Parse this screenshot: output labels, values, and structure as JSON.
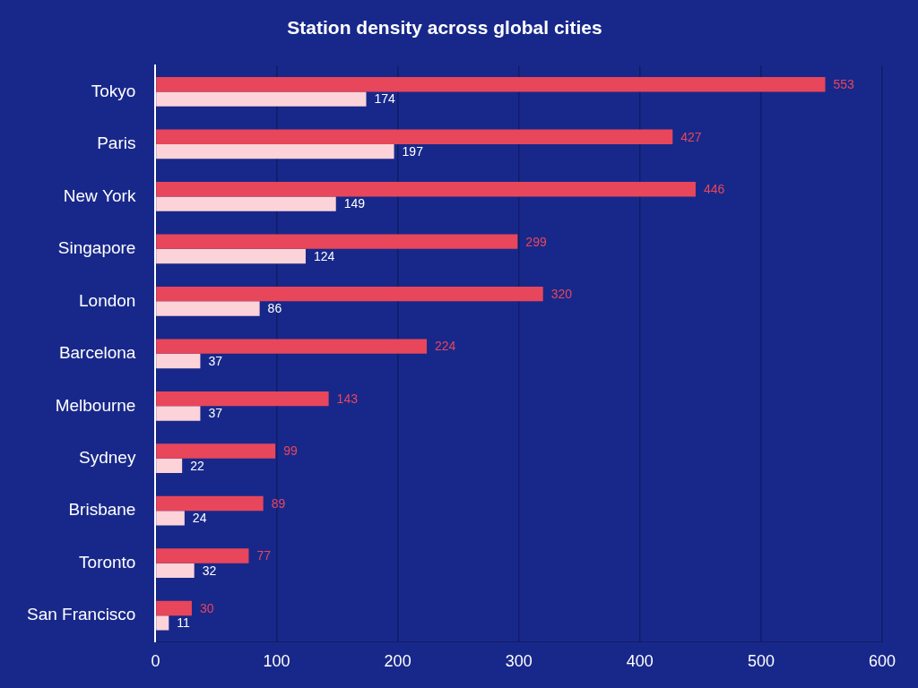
{
  "chart_data": {
    "type": "bar",
    "title": "Station density across global cities",
    "orientation": "horizontal",
    "categories": [
      "Tokyo",
      "Paris",
      "New York",
      "Singapore",
      "London",
      "Barcelona",
      "Melbourne",
      "Sydney",
      "Brisbane",
      "Toronto",
      "San Francisco"
    ],
    "series": [
      {
        "color": "#e8465b",
        "values": [
          553,
          427,
          446,
          299,
          320,
          224,
          143,
          99,
          89,
          77,
          30
        ]
      },
      {
        "color": "#fcd3d8",
        "values": [
          174,
          197,
          149,
          124,
          86,
          37,
          37,
          22,
          24,
          32,
          11
        ]
      }
    ],
    "xlim": [
      0,
      600
    ],
    "xticks": [
      0,
      100,
      200,
      300,
      400,
      500,
      600
    ],
    "grid": true,
    "data_labels": true
  }
}
